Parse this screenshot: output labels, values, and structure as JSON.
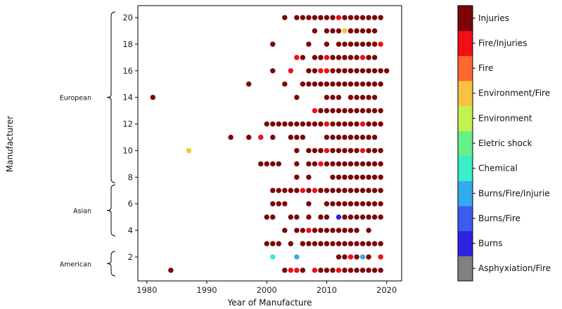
{
  "chart_data": {
    "type": "scatter",
    "xlabel": "Year of Manufacture",
    "ylabel": "Manufacturer",
    "xlim": [
      1978.5,
      2022.5
    ],
    "ylim": [
      0.2,
      20.9
    ],
    "xticks": [
      1980,
      1990,
      2000,
      2010,
      2020
    ],
    "yticks": [
      2,
      4,
      6,
      8,
      10,
      12,
      14,
      16,
      18,
      20
    ],
    "groups": [
      {
        "label": "European",
        "y_range": [
          8,
          20
        ]
      },
      {
        "label": "Asian",
        "y_range": [
          4,
          7
        ]
      },
      {
        "label": "American",
        "y_range": [
          1,
          2
        ]
      }
    ],
    "colorbar": {
      "categories": [
        "Asphyxiation/Fire",
        "Burns",
        "Burns/Fire",
        "Burns/Fire/Injurie",
        "Chemical",
        "Eletric shock",
        "Environment",
        "Environment/Fire",
        "Fire",
        "Fire/Injuries",
        "Injuries"
      ],
      "colors": [
        "#808080",
        "#2d22e0",
        "#3c5bef",
        "#36a9ef",
        "#38efc6",
        "#67f08a",
        "#c3f24f",
        "#f9c244",
        "#fe6830",
        "#f20e17",
        "#7d0509"
      ]
    },
    "rows": [
      {
        "y": 1,
        "injuries": [
          1984,
          2003,
          2006,
          2009,
          2010,
          2011,
          2013,
          2014,
          2015,
          2016,
          2017,
          2018,
          2019
        ],
        "fire_injuries": [
          2004,
          2005,
          2008,
          2012
        ]
      },
      {
        "y": 2,
        "injuries": [
          2012,
          2013,
          2015,
          2017
        ],
        "fire_injuries": [
          2014,
          2019
        ],
        "chemical": [
          2001
        ],
        "burns_fire_injurie": [
          2005,
          2016
        ]
      },
      {
        "y": 3,
        "injuries": [
          2000,
          2001,
          2002,
          2004,
          2006,
          2007,
          2008,
          2009,
          2010,
          2011,
          2012,
          2013,
          2014,
          2015,
          2016,
          2017,
          2018,
          2019
        ]
      },
      {
        "y": 4,
        "injuries": [
          2003,
          2005,
          2006,
          2008,
          2009,
          2010,
          2011,
          2012,
          2013,
          2014,
          2015,
          2017
        ],
        "fire_injuries": [
          2007
        ]
      },
      {
        "y": 5,
        "injuries": [
          2000,
          2001,
          2004,
          2005,
          2007,
          2009,
          2010,
          2013,
          2014,
          2015,
          2016,
          2017,
          2018,
          2019
        ],
        "burns": [
          2012
        ]
      },
      {
        "y": 6,
        "injuries": [
          2001,
          2002,
          2003,
          2007,
          2010,
          2011,
          2012,
          2013,
          2014,
          2015,
          2016,
          2017,
          2018,
          2019
        ]
      },
      {
        "y": 7,
        "injuries": [
          2001,
          2002,
          2003,
          2004,
          2005,
          2007,
          2009,
          2010,
          2011,
          2012,
          2013,
          2014,
          2015,
          2016,
          2017,
          2018,
          2019
        ],
        "fire_injuries": [
          2006,
          2008
        ]
      },
      {
        "y": 8,
        "injuries": [
          2005,
          2007,
          2011,
          2012,
          2013,
          2014,
          2015,
          2016,
          2017,
          2018,
          2019
        ]
      },
      {
        "y": 9,
        "injuries": [
          1999,
          2000,
          2001,
          2002,
          2005,
          2007,
          2008,
          2010,
          2011,
          2012,
          2013,
          2014,
          2015,
          2016,
          2017,
          2018,
          2019
        ],
        "fire_injuries": [
          2009
        ]
      },
      {
        "y": 10,
        "injuries": [
          2005,
          2007,
          2008,
          2009,
          2011,
          2012,
          2013,
          2014,
          2015,
          2017,
          2018,
          2019
        ],
        "fire_injuries": [
          2010,
          2016
        ],
        "environment_fire": [
          1987
        ]
      },
      {
        "y": 11,
        "injuries": [
          1994,
          1997,
          2001,
          2004,
          2005,
          2006,
          2010,
          2011,
          2012,
          2013,
          2014,
          2015,
          2016,
          2017,
          2018
        ],
        "fire_injuries": [
          1999
        ]
      },
      {
        "y": 12,
        "injuries": [
          2000,
          2001,
          2002,
          2003,
          2004,
          2005,
          2006,
          2007,
          2008,
          2009,
          2011,
          2012,
          2013,
          2014,
          2015,
          2017,
          2018,
          2019
        ],
        "fire_injuries": [
          2010,
          2016
        ]
      },
      {
        "y": 13,
        "injuries": [
          2009,
          2010,
          2011,
          2012,
          2013,
          2014,
          2015,
          2016,
          2017,
          2018,
          2019
        ],
        "fire_injuries": [
          2008
        ]
      },
      {
        "y": 14,
        "injuries": [
          1981,
          2005,
          2010,
          2011,
          2012,
          2014,
          2015,
          2016,
          2017,
          2018
        ]
      },
      {
        "y": 15,
        "injuries": [
          1997,
          2003,
          2006,
          2007,
          2008,
          2009,
          2010,
          2011,
          2012,
          2013,
          2014,
          2015,
          2016,
          2017,
          2018,
          2019
        ]
      },
      {
        "y": 16,
        "injuries": [
          2001,
          2007,
          2008,
          2011,
          2012,
          2013,
          2014,
          2015,
          2016,
          2017,
          2018,
          2019,
          2020
        ],
        "fire_injuries": [
          2004,
          2009,
          2010
        ]
      },
      {
        "y": 17,
        "injuries": [
          2006,
          2008,
          2009,
          2011,
          2012,
          2013,
          2014,
          2015,
          2017,
          2018
        ],
        "fire_injuries": [
          2005,
          2010,
          2016
        ]
      },
      {
        "y": 18,
        "injuries": [
          2001,
          2007,
          2010,
          2012,
          2013,
          2014,
          2015,
          2016,
          2017,
          2018
        ],
        "fire_injuries": [
          2019
        ]
      },
      {
        "y": 19,
        "injuries": [
          2008,
          2010,
          2011,
          2012,
          2014,
          2015,
          2016,
          2017,
          2018
        ],
        "environment_fire": [
          2013
        ]
      },
      {
        "y": 20,
        "injuries": [
          2003,
          2005,
          2006,
          2007,
          2008,
          2009,
          2010,
          2011,
          2013,
          2014,
          2015,
          2016,
          2017,
          2018,
          2019
        ],
        "fire_injuries": [
          2012
        ]
      }
    ]
  }
}
